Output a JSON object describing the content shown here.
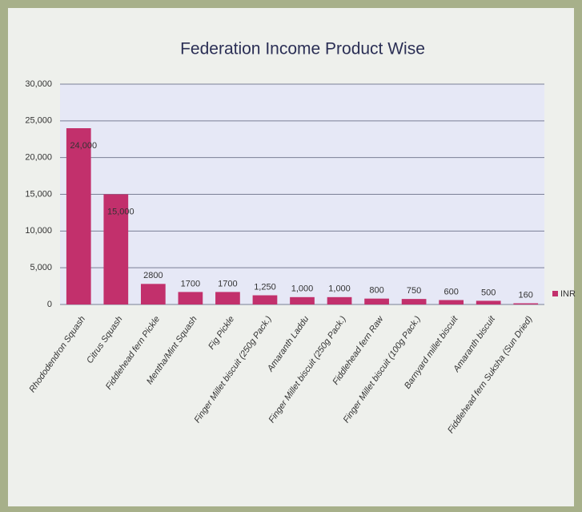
{
  "chart_data": {
    "type": "bar",
    "title": "Federation Income Product Wise",
    "categories": [
      "Rhododendron Squash",
      "Citrus Squash",
      "Fiddlehead fern Pickle",
      "Mentha/Mint Squash",
      "Fig Pickle",
      "Finger Millet biscuit (250g Pack.)",
      "Amaranth Laddu",
      "Finger Millet biscuit (250g Pack.)",
      "Fiddlehead fern Raw",
      "Finger Millet biscuit (100g Pack.)",
      "Barnyard millet biscuit",
      "Amaranth biscuit",
      "Fiddlehead fern Suksha (Sun Dried)"
    ],
    "series": [
      {
        "name": "INR",
        "color": "#c2306c",
        "values": [
          24000,
          15000,
          2800,
          1700,
          1700,
          1250,
          1000,
          1000,
          800,
          750,
          600,
          500,
          160
        ],
        "value_labels": [
          "24,000",
          "15,000",
          "2800",
          "1700",
          "1700",
          "1,250",
          "1,000",
          "1,000",
          "800",
          "750",
          "600",
          "500",
          "160"
        ]
      }
    ],
    "ylim": [
      0,
      30000
    ],
    "yticks": [
      0,
      {
        "value": 5000,
        "label": "5,000"
      },
      {
        "value": 10000,
        "label": "10,000"
      },
      {
        "value": 15000,
        "label": "15,000"
      },
      {
        "value": 20000,
        "label": "20,000"
      },
      {
        "value": 25000,
        "label": "25,000"
      },
      {
        "value": 30000,
        "label": "30,000"
      }
    ],
    "grid": true,
    "legend": "right"
  }
}
